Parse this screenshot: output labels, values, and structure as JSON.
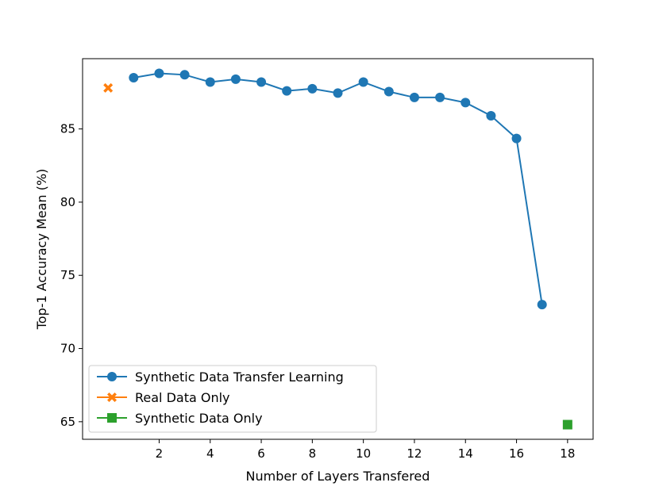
{
  "chart_data": {
    "type": "line",
    "xlabel": "Number of Layers Transfered",
    "ylabel": "Top-1 Accuracy Mean (%)",
    "xlim": [
      -1,
      19
    ],
    "ylim": [
      63.8,
      89.8
    ],
    "xticks": [
      2,
      4,
      6,
      8,
      10,
      12,
      14,
      16,
      18
    ],
    "yticks": [
      65,
      70,
      75,
      80,
      85
    ],
    "legend_position": "lower left",
    "series": [
      {
        "name": "Synthetic Data Transfer Learning",
        "color": "#1f77b4",
        "marker": "circle",
        "line": true,
        "x": [
          1,
          2,
          3,
          4,
          5,
          6,
          7,
          8,
          9,
          10,
          11,
          12,
          13,
          14,
          15,
          16,
          17
        ],
        "y": [
          88.5,
          88.8,
          88.7,
          88.2,
          88.4,
          88.2,
          87.6,
          87.75,
          87.45,
          88.2,
          87.55,
          87.15,
          87.15,
          86.8,
          85.9,
          84.35,
          73.0
        ]
      },
      {
        "name": "Real Data Only",
        "color": "#ff7f0e",
        "marker": "x",
        "line": false,
        "x": [
          0
        ],
        "y": [
          87.8
        ]
      },
      {
        "name": "Synthetic Data Only",
        "color": "#2ca02c",
        "marker": "square",
        "line": false,
        "x": [
          18
        ],
        "y": [
          64.8
        ]
      }
    ]
  }
}
